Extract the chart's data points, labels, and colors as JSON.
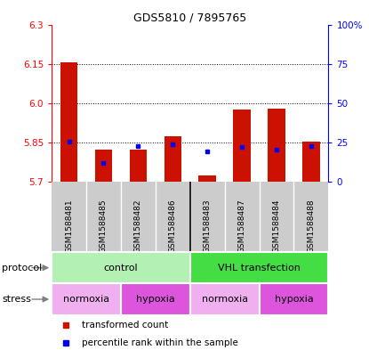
{
  "title": "GDS5810 / 7895765",
  "samples": [
    "GSM1588481",
    "GSM1588485",
    "GSM1588482",
    "GSM1588486",
    "GSM1588483",
    "GSM1588487",
    "GSM1588484",
    "GSM1588488"
  ],
  "red_values": [
    6.155,
    5.825,
    5.825,
    5.875,
    5.725,
    5.975,
    5.98,
    5.855
  ],
  "blue_values": [
    5.853,
    5.772,
    5.838,
    5.843,
    5.818,
    5.835,
    5.825,
    5.838
  ],
  "y_min": 5.7,
  "y_max": 6.3,
  "y_ticks_red": [
    5.7,
    5.85,
    6.0,
    6.15,
    6.3
  ],
  "y_ticks_blue_labels": [
    "0",
    "25",
    "50",
    "75",
    "100%"
  ],
  "grid_lines": [
    5.85,
    6.0,
    6.15
  ],
  "protocol_groups": [
    {
      "label": "control",
      "start": 0,
      "end": 4,
      "color": "#b3f0b3"
    },
    {
      "label": "VHL transfection",
      "start": 4,
      "end": 8,
      "color": "#44dd44"
    }
  ],
  "stress_groups": [
    {
      "label": "normoxia",
      "start": 0,
      "end": 2,
      "color": "#f0b0f0"
    },
    {
      "label": "hypoxia",
      "start": 2,
      "end": 4,
      "color": "#dd55dd"
    },
    {
      "label": "normoxia",
      "start": 4,
      "end": 6,
      "color": "#f0b0f0"
    },
    {
      "label": "hypoxia",
      "start": 6,
      "end": 8,
      "color": "#dd55dd"
    }
  ],
  "bar_width": 0.5,
  "red_color": "#cc1100",
  "blue_color": "#0000ee",
  "sample_bg": "#cccccc",
  "protocol_label": "protocol",
  "stress_label": "stress",
  "legend_red": "transformed count",
  "legend_blue": "percentile rank within the sample",
  "chart_bg": "#ffffff"
}
